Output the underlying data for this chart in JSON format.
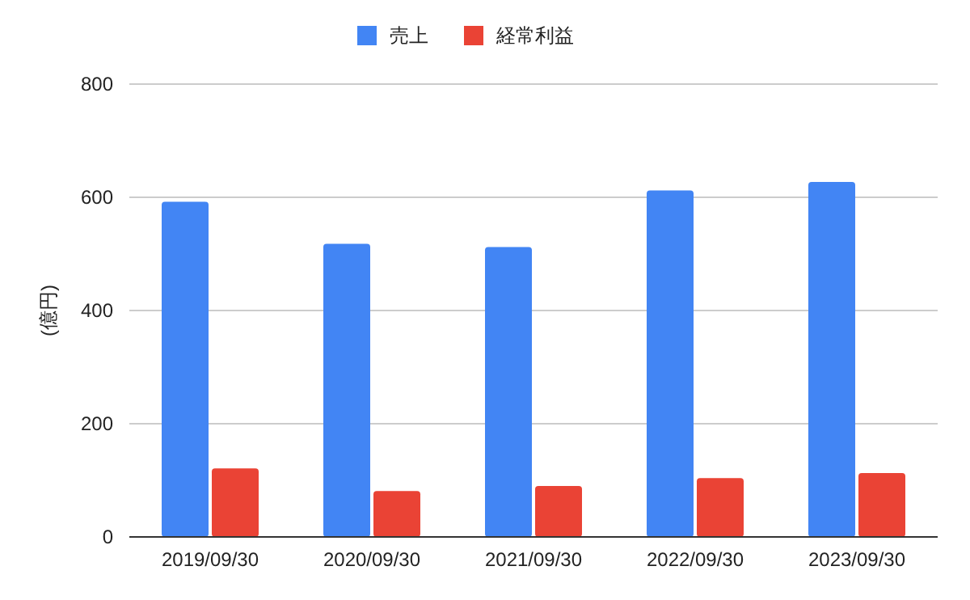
{
  "chart_data": {
    "type": "bar",
    "ylabel": "(億円)",
    "categories": [
      "2019/09/30",
      "2020/09/30",
      "2021/09/30",
      "2022/09/30",
      "2023/09/30"
    ],
    "series": [
      {
        "name": "売上",
        "color": "#4285f4",
        "values": [
          592,
          518,
          512,
          612,
          627
        ]
      },
      {
        "name": "経常利益",
        "color": "#ea4335",
        "values": [
          121,
          81,
          90,
          104,
          113
        ]
      }
    ],
    "ylim": [
      0,
      800
    ],
    "yticks": [
      0,
      200,
      400,
      600,
      800
    ],
    "grid": "y",
    "legend": "top"
  }
}
